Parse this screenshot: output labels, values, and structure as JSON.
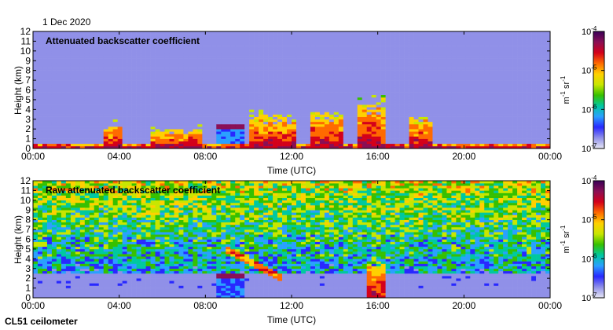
{
  "date": "1 Dec 2020",
  "instrument": "CL51 ceilometer",
  "colorbar": {
    "ticks": [
      "10",
      "10",
      "10",
      "10"
    ],
    "exponents": [
      "-4",
      "-5",
      "-6",
      "-7"
    ],
    "unit_m": "m",
    "unit_m_exp": "-1",
    "unit_sr": "sr",
    "unit_sr_exp": "-1",
    "colors": [
      "#3a0058",
      "#8a0f55",
      "#d4001a",
      "#ff6a00",
      "#ffd000",
      "#c8e600",
      "#36c000",
      "#00c8a0",
      "#2aa0ff",
      "#2828ff",
      "#9090e8",
      "#e6e6f4"
    ]
  },
  "chart_data": [
    {
      "type": "heatmap",
      "title": "Attenuated backscatter coefficient",
      "xlabel": "Time (UTC)",
      "ylabel": "Height (km)",
      "x_ticks": [
        "00:00",
        "04:00",
        "08:00",
        "12:00",
        "16:00",
        "20:00",
        "00:00"
      ],
      "y_ticks": [
        "0",
        "1",
        "2",
        "3",
        "4",
        "5",
        "6",
        "7",
        "8",
        "9",
        "10",
        "11",
        "12"
      ],
      "xlim_hours": [
        0,
        24
      ],
      "ylim_km": [
        0,
        12
      ],
      "clim": [
        "1e-7",
        "1e-4"
      ],
      "features": [
        {
          "kind": "surface_layer",
          "t": [
            0,
            24
          ],
          "top_km": 0.6
        },
        {
          "kind": "aerosol_plume",
          "t": [
            3.3,
            4.2
          ],
          "top_km": 3.2
        },
        {
          "kind": "aerosol_plume",
          "t": [
            5.5,
            7.8
          ],
          "top_km": 2.4
        },
        {
          "kind": "cloud_base",
          "t": [
            8.5,
            9.8
          ],
          "z_km": 2.2
        },
        {
          "kind": "aerosol_plume",
          "t": [
            10.0,
            12.2
          ],
          "top_km": 4.0
        },
        {
          "kind": "aerosol_plume",
          "t": [
            12.8,
            14.5
          ],
          "top_km": 4.4
        },
        {
          "kind": "aerosol_plume",
          "t": [
            15.0,
            16.4
          ],
          "top_km": 5.8
        },
        {
          "kind": "aerosol_plume",
          "t": [
            17.5,
            18.6
          ],
          "top_km": 3.9
        },
        {
          "kind": "isolated_point",
          "t": [
            11.7,
            11.8
          ],
          "z_km": 10.6
        }
      ]
    },
    {
      "type": "heatmap",
      "title": "Raw attenuated backscatter coefficient",
      "xlabel": "Time (UTC)",
      "ylabel": "Height (km)",
      "x_ticks": [
        "00:00",
        "04:00",
        "08:00",
        "12:00",
        "16:00",
        "20:00",
        "00:00"
      ],
      "y_ticks": [
        "0",
        "1",
        "2",
        "3",
        "4",
        "5",
        "6",
        "7",
        "8",
        "9",
        "10",
        "11",
        "12"
      ],
      "xlim_hours": [
        0,
        24
      ],
      "ylim_km": [
        0,
        12
      ],
      "clim": [
        "1e-7",
        "1e-4"
      ],
      "features": [
        {
          "kind": "noise_above_km",
          "z_km": 2.5
        },
        {
          "kind": "clear_gap_band",
          "z_km": [
            0.9,
            2.3
          ]
        },
        {
          "kind": "cloud_base",
          "t": [
            8.5,
            9.8
          ],
          "z_km": 2.2
        },
        {
          "kind": "descending_layer",
          "t": [
            9.0,
            11.5
          ],
          "z_km": [
            5.0,
            2.0
          ]
        },
        {
          "kind": "aerosol_plume",
          "t": [
            15.4,
            16.3
          ],
          "top_km": 4.4
        }
      ]
    }
  ]
}
